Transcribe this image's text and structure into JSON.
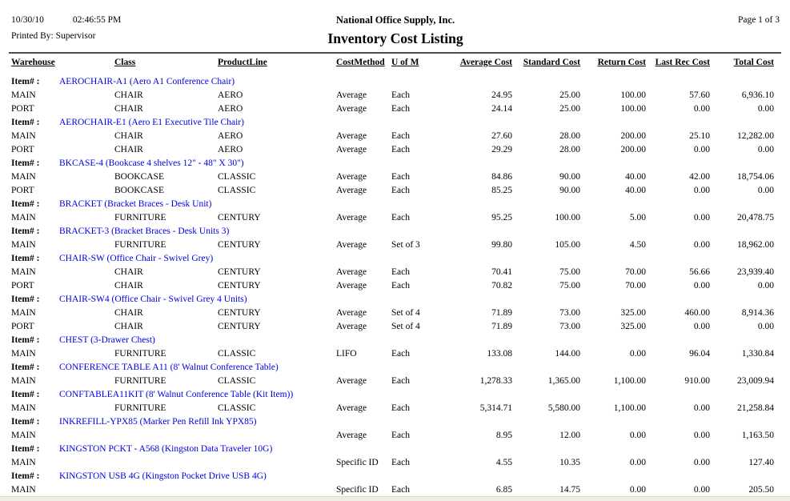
{
  "header": {
    "date": "10/30/10",
    "time": "02:46:55 PM",
    "printed_by": "Printed By: Supervisor",
    "company": "National Office Supply, Inc.",
    "report_title": "Inventory Cost Listing",
    "page": "Page 1 of 3"
  },
  "columns": [
    "Warehouse",
    "Class",
    "ProductLine",
    "CostMethod",
    "U of M",
    "Average Cost",
    "Standard Cost",
    "Return Cost",
    "Last Rec Cost",
    "Total Cost"
  ],
  "item_label": "Item# :",
  "accent_colors": {
    "item_link_blue": "#0000dd",
    "rule_gray": "#4d4d4d"
  },
  "items": [
    {
      "name": "AEROCHAIR-A1 (Aero A1 Conference Chair)",
      "rows": [
        {
          "warehouse": "MAIN",
          "class": "CHAIR",
          "product_line": "AERO",
          "cost_method": "Average",
          "uom": "Each",
          "average_cost": "24.95",
          "standard_cost": "25.00",
          "return_cost": "100.00",
          "last_rec_cost": "57.60",
          "total_cost": "6,936.10"
        },
        {
          "warehouse": "PORT",
          "class": "CHAIR",
          "product_line": "AERO",
          "cost_method": "Average",
          "uom": "Each",
          "average_cost": "24.14",
          "standard_cost": "25.00",
          "return_cost": "100.00",
          "last_rec_cost": "0.00",
          "total_cost": "0.00"
        }
      ]
    },
    {
      "name": "AEROCHAIR-E1 (Aero E1 Executive Tile Chair)",
      "rows": [
        {
          "warehouse": "MAIN",
          "class": "CHAIR",
          "product_line": "AERO",
          "cost_method": "Average",
          "uom": "Each",
          "average_cost": "27.60",
          "standard_cost": "28.00",
          "return_cost": "200.00",
          "last_rec_cost": "25.10",
          "total_cost": "12,282.00"
        },
        {
          "warehouse": "PORT",
          "class": "CHAIR",
          "product_line": "AERO",
          "cost_method": "Average",
          "uom": "Each",
          "average_cost": "29.29",
          "standard_cost": "28.00",
          "return_cost": "200.00",
          "last_rec_cost": "0.00",
          "total_cost": "0.00"
        }
      ]
    },
    {
      "name": "BKCASE-4 (Bookcase 4 shelves 12\" - 48\" X 30\")",
      "rows": [
        {
          "warehouse": "MAIN",
          "class": "BOOKCASE",
          "product_line": "CLASSIC",
          "cost_method": "Average",
          "uom": "Each",
          "average_cost": "84.86",
          "standard_cost": "90.00",
          "return_cost": "40.00",
          "last_rec_cost": "42.00",
          "total_cost": "18,754.06"
        },
        {
          "warehouse": "PORT",
          "class": "BOOKCASE",
          "product_line": "CLASSIC",
          "cost_method": "Average",
          "uom": "Each",
          "average_cost": "85.25",
          "standard_cost": "90.00",
          "return_cost": "40.00",
          "last_rec_cost": "0.00",
          "total_cost": "0.00"
        }
      ]
    },
    {
      "name": "BRACKET (Bracket Braces - Desk Unit)",
      "rows": [
        {
          "warehouse": "MAIN",
          "class": "FURNITURE",
          "product_line": "CENTURY",
          "cost_method": "Average",
          "uom": "Each",
          "average_cost": "95.25",
          "standard_cost": "100.00",
          "return_cost": "5.00",
          "last_rec_cost": "0.00",
          "total_cost": "20,478.75"
        }
      ]
    },
    {
      "name": "BRACKET-3 (Bracket Braces - Desk Units 3)",
      "rows": [
        {
          "warehouse": "MAIN",
          "class": "FURNITURE",
          "product_line": "CENTURY",
          "cost_method": "Average",
          "uom": "Set of 3",
          "average_cost": "99.80",
          "standard_cost": "105.00",
          "return_cost": "4.50",
          "last_rec_cost": "0.00",
          "total_cost": "18,962.00"
        }
      ]
    },
    {
      "name": "CHAIR-SW (Office Chair - Swivel Grey)",
      "rows": [
        {
          "warehouse": "MAIN",
          "class": "CHAIR",
          "product_line": "CENTURY",
          "cost_method": "Average",
          "uom": "Each",
          "average_cost": "70.41",
          "standard_cost": "75.00",
          "return_cost": "70.00",
          "last_rec_cost": "56.66",
          "total_cost": "23,939.40"
        },
        {
          "warehouse": "PORT",
          "class": "CHAIR",
          "product_line": "CENTURY",
          "cost_method": "Average",
          "uom": "Each",
          "average_cost": "70.82",
          "standard_cost": "75.00",
          "return_cost": "70.00",
          "last_rec_cost": "0.00",
          "total_cost": "0.00"
        }
      ]
    },
    {
      "name": "CHAIR-SW4 (Office Chair - Swivel Grey 4 Units)",
      "rows": [
        {
          "warehouse": "MAIN",
          "class": "CHAIR",
          "product_line": "CENTURY",
          "cost_method": "Average",
          "uom": "Set of 4",
          "average_cost": "71.89",
          "standard_cost": "73.00",
          "return_cost": "325.00",
          "last_rec_cost": "460.00",
          "total_cost": "8,914.36"
        },
        {
          "warehouse": "PORT",
          "class": "CHAIR",
          "product_line": "CENTURY",
          "cost_method": "Average",
          "uom": "Set of 4",
          "average_cost": "71.89",
          "standard_cost": "73.00",
          "return_cost": "325.00",
          "last_rec_cost": "0.00",
          "total_cost": "0.00"
        }
      ]
    },
    {
      "name": "CHEST (3-Drawer Chest)",
      "rows": [
        {
          "warehouse": "MAIN",
          "class": "FURNITURE",
          "product_line": "CLASSIC",
          "cost_method": "LIFO",
          "uom": "Each",
          "average_cost": "133.08",
          "standard_cost": "144.00",
          "return_cost": "0.00",
          "last_rec_cost": "96.04",
          "total_cost": "1,330.84"
        }
      ]
    },
    {
      "name": "CONFERENCE TABLE A11 (8' Walnut Conference Table)",
      "rows": [
        {
          "warehouse": "MAIN",
          "class": "FURNITURE",
          "product_line": "CLASSIC",
          "cost_method": "Average",
          "uom": "Each",
          "average_cost": "1,278.33",
          "standard_cost": "1,365.00",
          "return_cost": "1,100.00",
          "last_rec_cost": "910.00",
          "total_cost": "23,009.94"
        }
      ]
    },
    {
      "name": "CONFTABLEA11KIT (8' Walnut Conference Table (Kit Item))",
      "rows": [
        {
          "warehouse": "MAIN",
          "class": "FURNITURE",
          "product_line": "CLASSIC",
          "cost_method": "Average",
          "uom": "Each",
          "average_cost": "5,314.71",
          "standard_cost": "5,580.00",
          "return_cost": "1,100.00",
          "last_rec_cost": "0.00",
          "total_cost": "21,258.84"
        }
      ]
    },
    {
      "name": "INKREFILL-YPX85 (Marker Pen Refill Ink YPX85)",
      "rows": [
        {
          "warehouse": "MAIN",
          "class": "",
          "product_line": "",
          "cost_method": "Average",
          "uom": "Each",
          "average_cost": "8.95",
          "standard_cost": "12.00",
          "return_cost": "0.00",
          "last_rec_cost": "0.00",
          "total_cost": "1,163.50"
        }
      ]
    },
    {
      "name": "KINGSTON PCKT - A568 (Kingston Data Traveler 10G)",
      "rows": [
        {
          "warehouse": "MAIN",
          "class": "",
          "product_line": "",
          "cost_method": "Specific ID",
          "uom": "Each",
          "average_cost": "4.55",
          "standard_cost": "10.35",
          "return_cost": "0.00",
          "last_rec_cost": "0.00",
          "total_cost": "127.40"
        }
      ]
    },
    {
      "name": "KINGSTON USB 4G (Kingston Pocket Drive USB 4G)",
      "rows": [
        {
          "warehouse": "MAIN",
          "class": "",
          "product_line": "",
          "cost_method": "Specific ID",
          "uom": "Each",
          "average_cost": "6.85",
          "standard_cost": "14.75",
          "return_cost": "0.00",
          "last_rec_cost": "0.00",
          "total_cost": "205.50"
        }
      ]
    }
  ]
}
